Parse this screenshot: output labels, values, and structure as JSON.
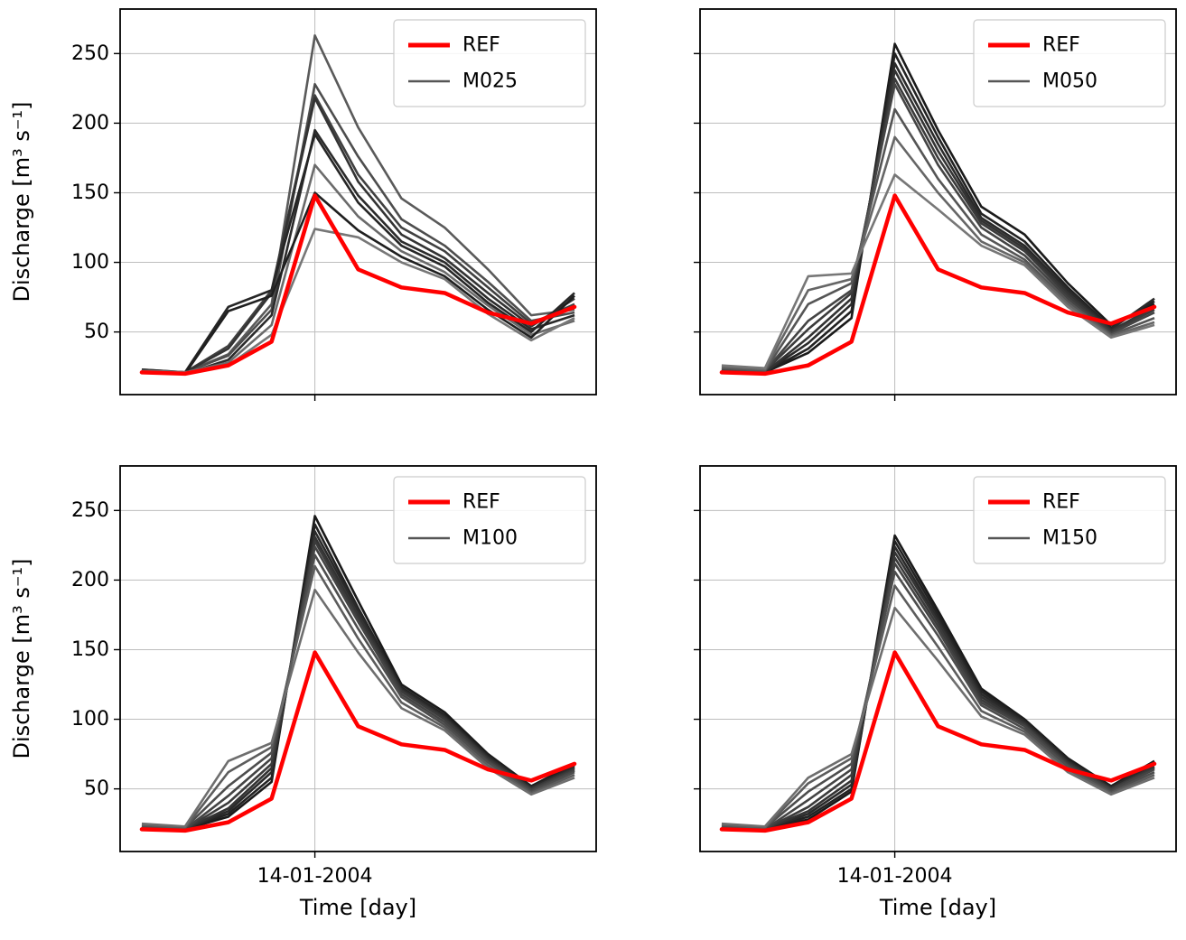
{
  "figure": {
    "background": "#ffffff",
    "ylabel": "Discharge [m³ s⁻¹]",
    "xlabel": "Time [day]",
    "ref_color": "#ff0000",
    "grid_color": "#bdbdbd",
    "spine_color": "#000000",
    "legend_gray": "#555555",
    "legend_border": "#cccccc",
    "y_ticks": [
      50,
      100,
      150,
      200,
      250
    ],
    "ylim": [
      5,
      282
    ],
    "x_tick": {
      "index": 4,
      "label": "14-01-2004"
    },
    "n_points": 11
  },
  "chart_data": [
    {
      "type": "line",
      "name": "M025",
      "position": "top-left",
      "legend": [
        "REF",
        "M025"
      ],
      "x_labels_visible": false,
      "y_labels_visible": true,
      "ref": [
        21,
        20,
        26,
        43,
        148,
        95,
        82,
        78,
        64,
        56,
        68
      ],
      "series": [
        {
          "color": "#5a5a5a",
          "values": [
            22,
            21,
            34,
            70,
            263,
            197,
            146,
            125,
            95,
            62,
            66
          ]
        },
        {
          "color": "#4d4d4d",
          "values": [
            23,
            21,
            33,
            66,
            228,
            176,
            131,
            112,
            86,
            58,
            64
          ]
        },
        {
          "color": "#404040",
          "values": [
            22,
            21,
            40,
            80,
            220,
            163,
            125,
            108,
            82,
            56,
            70
          ]
        },
        {
          "color": "#333333",
          "values": [
            22,
            21,
            38,
            78,
            218,
            158,
            120,
            103,
            78,
            54,
            74
          ]
        },
        {
          "color": "#2b2b2b",
          "values": [
            22,
            20,
            30,
            62,
            195,
            148,
            115,
            100,
            74,
            52,
            62
          ]
        },
        {
          "color": "#262626",
          "values": [
            23,
            21,
            68,
            80,
            192,
            143,
            112,
            97,
            71,
            50,
            78
          ]
        },
        {
          "color": "#6b6b6b",
          "values": [
            22,
            21,
            28,
            55,
            170,
            133,
            108,
            93,
            69,
            48,
            58
          ]
        },
        {
          "color": "#1f1f1f",
          "values": [
            22,
            20,
            65,
            76,
            150,
            123,
            104,
            90,
            66,
            46,
            76
          ]
        },
        {
          "color": "#777777",
          "values": [
            22,
            21,
            26,
            48,
            124,
            118,
            100,
            88,
            63,
            44,
            60
          ]
        }
      ]
    },
    {
      "type": "line",
      "name": "M050",
      "position": "top-right",
      "legend": [
        "REF",
        "M050"
      ],
      "x_labels_visible": false,
      "y_labels_visible": false,
      "ref": [
        21,
        20,
        26,
        43,
        148,
        95,
        82,
        78,
        64,
        56,
        68
      ],
      "series": [
        {
          "color": "#1a1a1a",
          "values": [
            22,
            21,
            35,
            60,
            257,
            195,
            140,
            120,
            85,
            55,
            70
          ]
        },
        {
          "color": "#222222",
          "values": [
            22,
            21,
            38,
            65,
            250,
            190,
            135,
            115,
            82,
            53,
            72
          ]
        },
        {
          "color": "#2a2a2a",
          "values": [
            23,
            21,
            42,
            70,
            243,
            185,
            132,
            112,
            80,
            52,
            74
          ]
        },
        {
          "color": "#333333",
          "values": [
            22,
            21,
            46,
            74,
            238,
            180,
            130,
            110,
            78,
            51,
            68
          ]
        },
        {
          "color": "#3b3b3b",
          "values": [
            23,
            22,
            52,
            78,
            232,
            175,
            128,
            108,
            76,
            50,
            66
          ]
        },
        {
          "color": "#444444",
          "values": [
            23,
            22,
            58,
            80,
            228,
            170,
            125,
            105,
            74,
            49,
            64
          ]
        },
        {
          "color": "#555555",
          "values": [
            24,
            22,
            70,
            85,
            210,
            160,
            120,
            102,
            72,
            48,
            60
          ]
        },
        {
          "color": "#666666",
          "values": [
            25,
            23,
            80,
            88,
            190,
            150,
            115,
            100,
            70,
            47,
            57
          ]
        },
        {
          "color": "#777777",
          "values": [
            26,
            24,
            90,
            92,
            163,
            138,
            112,
            98,
            68,
            46,
            55
          ]
        }
      ]
    },
    {
      "type": "line",
      "name": "M100",
      "position": "bottom-left",
      "legend": [
        "REF",
        "M100"
      ],
      "x_labels_visible": true,
      "y_labels_visible": true,
      "ref": [
        21,
        20,
        26,
        43,
        148,
        95,
        82,
        78,
        64,
        56,
        68
      ],
      "series": [
        {
          "color": "#1a1a1a",
          "values": [
            22,
            21,
            30,
            55,
            246,
            185,
            125,
            105,
            75,
            52,
            68
          ]
        },
        {
          "color": "#222222",
          "values": [
            22,
            21,
            32,
            58,
            240,
            180,
            123,
            103,
            74,
            51,
            67
          ]
        },
        {
          "color": "#2a2a2a",
          "values": [
            22,
            21,
            34,
            62,
            235,
            178,
            122,
            102,
            73,
            51,
            66
          ]
        },
        {
          "color": "#333333",
          "values": [
            22,
            21,
            36,
            65,
            231,
            175,
            121,
            101,
            72,
            50,
            65
          ]
        },
        {
          "color": "#3b3b3b",
          "values": [
            22,
            21,
            40,
            68,
            228,
            172,
            120,
            100,
            71,
            50,
            64
          ]
        },
        {
          "color": "#444444",
          "values": [
            23,
            21,
            45,
            72,
            224,
            170,
            118,
            98,
            70,
            49,
            63
          ]
        },
        {
          "color": "#4d4d4d",
          "values": [
            23,
            22,
            52,
            76,
            218,
            165,
            116,
            96,
            69,
            48,
            62
          ]
        },
        {
          "color": "#5c5c5c",
          "values": [
            24,
            22,
            62,
            80,
            210,
            158,
            112,
            94,
            67,
            47,
            60
          ]
        },
        {
          "color": "#6e6e6e",
          "values": [
            25,
            23,
            70,
            83,
            193,
            148,
            108,
            92,
            65,
            46,
            58
          ]
        }
      ]
    },
    {
      "type": "line",
      "name": "M150",
      "position": "bottom-right",
      "legend": [
        "REF",
        "M150"
      ],
      "x_labels_visible": true,
      "y_labels_visible": false,
      "ref": [
        21,
        20,
        26,
        43,
        148,
        95,
        82,
        78,
        64,
        56,
        68
      ],
      "series": [
        {
          "color": "#1a1a1a",
          "values": [
            22,
            21,
            28,
            48,
            232,
            178,
            122,
            100,
            72,
            52,
            70
          ]
        },
        {
          "color": "#222222",
          "values": [
            22,
            21,
            30,
            50,
            228,
            175,
            120,
            99,
            71,
            51,
            69
          ]
        },
        {
          "color": "#2a2a2a",
          "values": [
            22,
            21,
            32,
            53,
            224,
            172,
            118,
            98,
            70,
            51,
            68
          ]
        },
        {
          "color": "#333333",
          "values": [
            22,
            21,
            34,
            56,
            220,
            170,
            116,
            97,
            69,
            50,
            66
          ]
        },
        {
          "color": "#3b3b3b",
          "values": [
            22,
            21,
            37,
            60,
            216,
            167,
            114,
            96,
            68,
            50,
            65
          ]
        },
        {
          "color": "#444444",
          "values": [
            23,
            21,
            42,
            64,
            212,
            164,
            112,
            95,
            67,
            49,
            64
          ]
        },
        {
          "color": "#4d4d4d",
          "values": [
            23,
            22,
            48,
            68,
            206,
            160,
            110,
            93,
            66,
            48,
            62
          ]
        },
        {
          "color": "#5c5c5c",
          "values": [
            24,
            22,
            54,
            72,
            196,
            152,
            106,
            91,
            64,
            47,
            60
          ]
        },
        {
          "color": "#6e6e6e",
          "values": [
            25,
            23,
            58,
            75,
            180,
            142,
            102,
            89,
            62,
            46,
            58
          ]
        }
      ]
    }
  ]
}
